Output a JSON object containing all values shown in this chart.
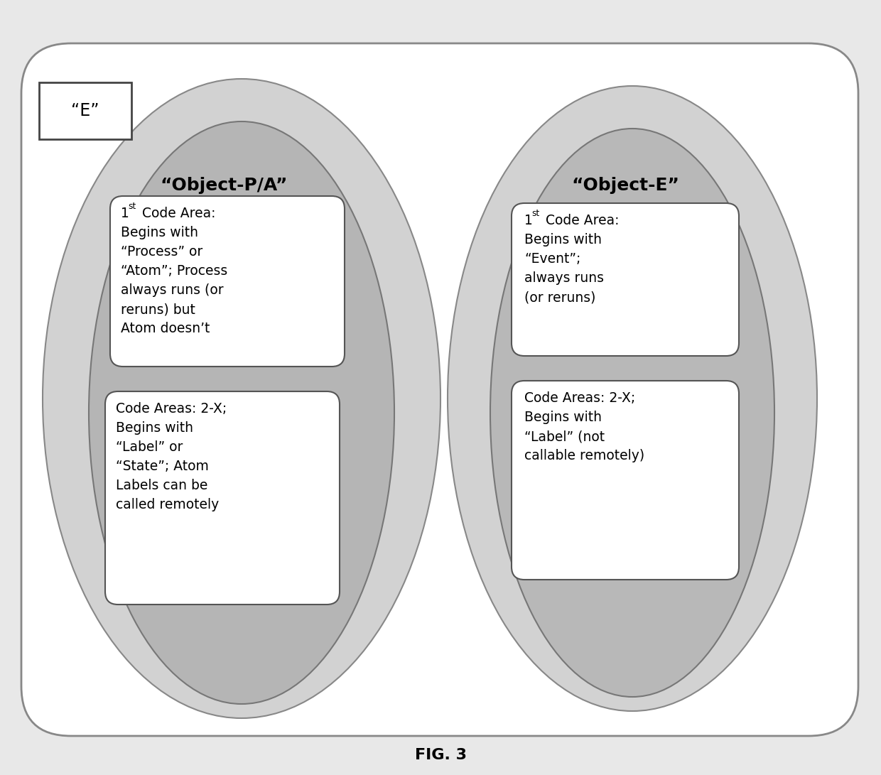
{
  "title": "FIG. 3",
  "e_label": "“E”",
  "outer_bg": "#ffffff",
  "outer_edge": "#888888",
  "outer_fill": "#ffffff",
  "large_ellipse_fill": "#d0d0d0",
  "large_ellipse_edge": "#888888",
  "inner_ellipse_fill": "#b8b8b8",
  "inner_ellipse_edge": "#888888",
  "box_fill": "#ffffff",
  "box_edge": "#666666",
  "obj_pa_label": "“Object-P/A”",
  "obj_e_label": "“Object-E”",
  "box1_left_lines": [
    "1st Code Area:",
    "Begins with",
    "“Process” or",
    "“Atom”; Process",
    "always runs (or",
    "reruns) but",
    "Atom doesn’t"
  ],
  "box2_left_lines": [
    "Code Areas: 2-X;",
    "Begins with",
    "“Label” or",
    "“State”; Atom",
    "Labels can be",
    "called remotely"
  ],
  "box1_right_lines": [
    "1st Code Area:",
    "Begins with",
    "“Event”;",
    "always runs",
    "(or reruns)"
  ],
  "box2_right_lines": [
    "Code Areas: 2-X;",
    "Begins with",
    "“Label” (not",
    "callable remotely)"
  ],
  "fig_label": "FIG. 3",
  "page_bg": "#e8e8e8"
}
